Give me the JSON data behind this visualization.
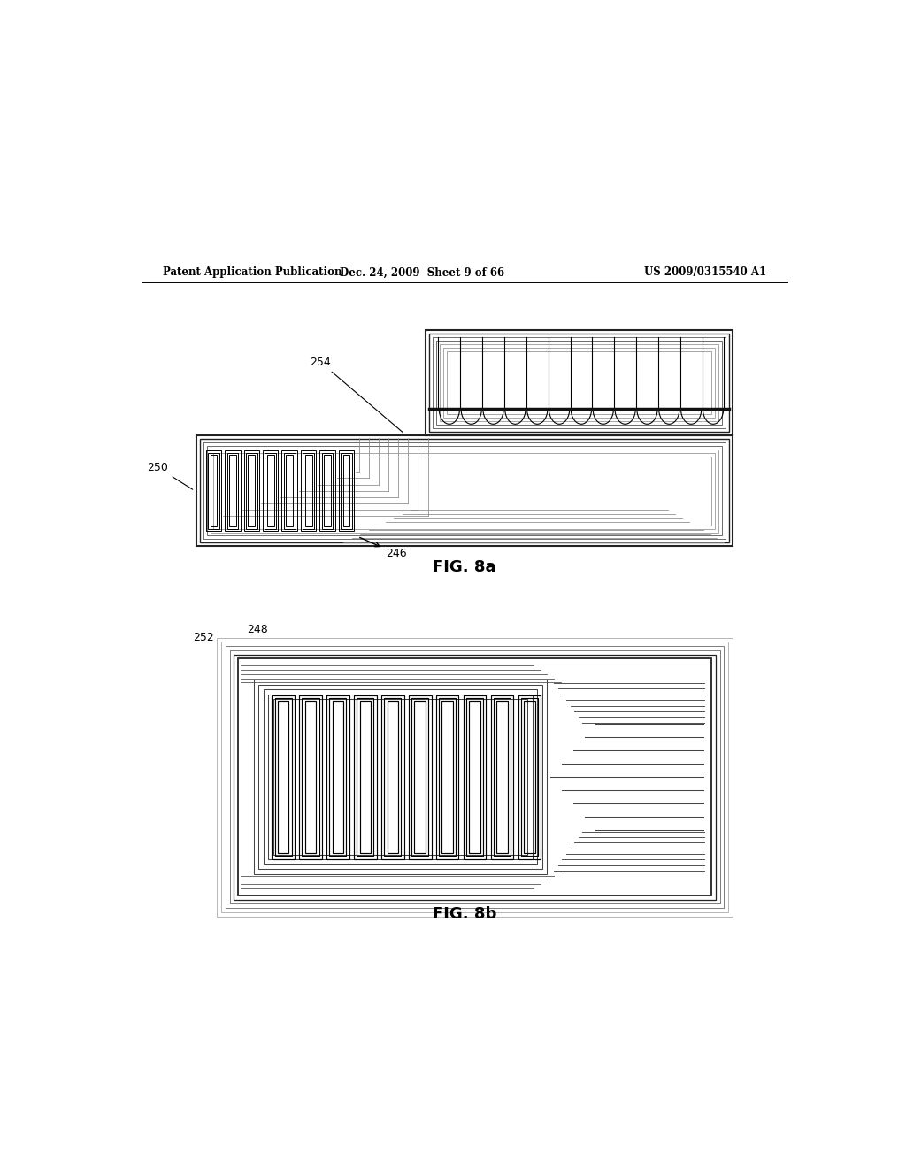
{
  "header_left": "Patent Application Publication",
  "header_mid": "Dec. 24, 2009  Sheet 9 of 66",
  "header_right": "US 2009/0315540 A1",
  "fig8a_label": "FIG. 8a",
  "fig8b_label": "FIG. 8b",
  "bg_color": "#ffffff",
  "line_color": "#000000",
  "gray_mid": "#888888",
  "gray_light": "#aaaaaa",
  "gray_dark": "#555555"
}
